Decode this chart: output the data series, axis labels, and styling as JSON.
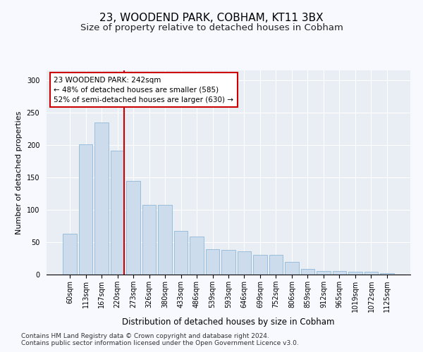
{
  "title1": "23, WOODEND PARK, COBHAM, KT11 3BX",
  "title2": "Size of property relative to detached houses in Cobham",
  "xlabel": "Distribution of detached houses by size in Cobham",
  "ylabel": "Number of detached properties",
  "categories": [
    "60sqm",
    "113sqm",
    "167sqm",
    "220sqm",
    "273sqm",
    "326sqm",
    "380sqm",
    "433sqm",
    "486sqm",
    "539sqm",
    "593sqm",
    "646sqm",
    "699sqm",
    "752sqm",
    "806sqm",
    "859sqm",
    "912sqm",
    "965sqm",
    "1019sqm",
    "1072sqm",
    "1125sqm"
  ],
  "values": [
    63,
    201,
    235,
    191,
    144,
    108,
    108,
    67,
    59,
    39,
    38,
    36,
    30,
    30,
    20,
    9,
    5,
    5,
    4,
    4,
    2
  ],
  "bar_color": "#ccdcec",
  "bar_edge_color": "#90b8d8",
  "marker_label": "23 WOODEND PARK: 242sqm",
  "annotation_line1": "← 48% of detached houses are smaller (585)",
  "annotation_line2": "52% of semi-detached houses are larger (630) →",
  "annotation_box_color": "#ffffff",
  "annotation_box_edge": "#cc0000",
  "marker_line_color": "#cc0000",
  "ylim": [
    0,
    315
  ],
  "footnote1": "Contains HM Land Registry data © Crown copyright and database right 2024.",
  "footnote2": "Contains public sector information licensed under the Open Government Licence v3.0.",
  "background_color": "#e8eef4",
  "grid_color": "#ffffff",
  "title1_fontsize": 11,
  "title2_fontsize": 9.5,
  "xlabel_fontsize": 8.5,
  "ylabel_fontsize": 8,
  "tick_fontsize": 7,
  "annotation_fontsize": 7.5,
  "footnote_fontsize": 6.5
}
